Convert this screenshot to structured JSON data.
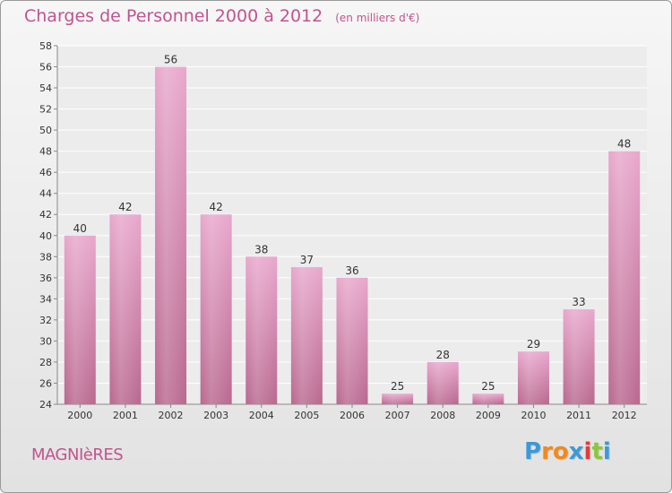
{
  "chart_data": {
    "type": "bar",
    "title": "Charges de Personnel 2000 à 2012",
    "subtitle": "(en milliers d'€)",
    "categories": [
      "2000",
      "2001",
      "2002",
      "2003",
      "2004",
      "2005",
      "2006",
      "2007",
      "2008",
      "2009",
      "2010",
      "2011",
      "2012"
    ],
    "values": [
      40,
      42,
      56,
      42,
      38,
      37,
      36,
      25,
      28,
      25,
      29,
      33,
      48
    ],
    "ylim": [
      24,
      58
    ],
    "ytick_step": 2,
    "grid": true,
    "xlabel": "",
    "ylabel": "",
    "bar_color": "#d88bb6"
  },
  "commune": "MAGNIèRES",
  "brand": {
    "letters": [
      "P",
      "r",
      "o",
      "x",
      "i",
      "t",
      "i"
    ],
    "colors": [
      "#3a9ad9",
      "#f08a1d",
      "#f08a1d",
      "#3a9ad9",
      "#e33b3b",
      "#8cc63f",
      "#3a9ad9"
    ]
  }
}
